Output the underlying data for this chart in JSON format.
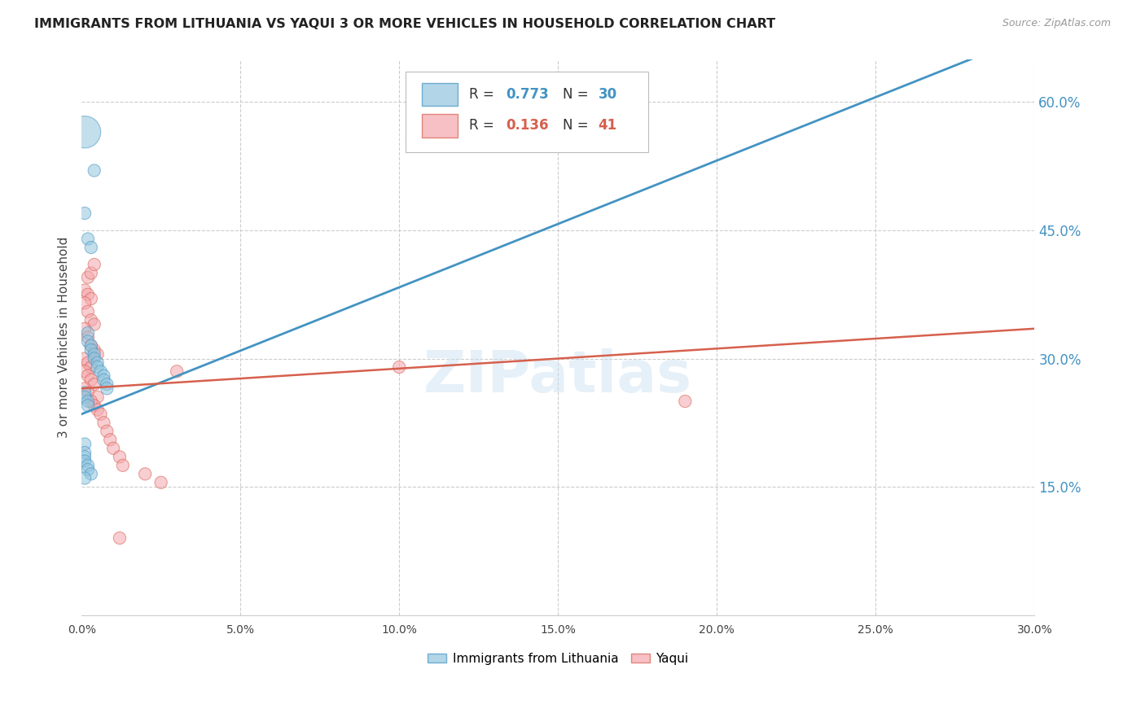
{
  "title": "IMMIGRANTS FROM LITHUANIA VS YAQUI 3 OR MORE VEHICLES IN HOUSEHOLD CORRELATION CHART",
  "source": "Source: ZipAtlas.com",
  "ylabel_label": "3 or more Vehicles in Household",
  "legend_label1": "Immigrants from Lithuania",
  "legend_label2": "Yaqui",
  "r1": "0.773",
  "n1": "30",
  "r2": "0.136",
  "n2": "41",
  "color1": "#92c5de",
  "color2": "#f4a6ad",
  "line_color1": "#4393c3",
  "line_color2": "#d6604d",
  "watermark": "ZIPatlas",
  "xmin": 0.0,
  "xmax": 0.3,
  "ymin": 0.0,
  "ymax": 0.65,
  "blue_line": [
    [
      0.0,
      0.235
    ],
    [
      0.3,
      0.68
    ]
  ],
  "pink_line": [
    [
      0.0,
      0.265
    ],
    [
      0.3,
      0.335
    ]
  ],
  "scatter_blue": [
    [
      0.001,
      0.565
    ],
    [
      0.004,
      0.52
    ],
    [
      0.001,
      0.47
    ],
    [
      0.002,
      0.44
    ],
    [
      0.003,
      0.43
    ],
    [
      0.002,
      0.33
    ],
    [
      0.002,
      0.32
    ],
    [
      0.003,
      0.315
    ],
    [
      0.003,
      0.31
    ],
    [
      0.004,
      0.305
    ],
    [
      0.004,
      0.3
    ],
    [
      0.005,
      0.295
    ],
    [
      0.005,
      0.29
    ],
    [
      0.006,
      0.285
    ],
    [
      0.007,
      0.28
    ],
    [
      0.007,
      0.275
    ],
    [
      0.008,
      0.27
    ],
    [
      0.008,
      0.265
    ],
    [
      0.001,
      0.26
    ],
    [
      0.001,
      0.255
    ],
    [
      0.002,
      0.25
    ],
    [
      0.002,
      0.245
    ],
    [
      0.001,
      0.2
    ],
    [
      0.001,
      0.19
    ],
    [
      0.001,
      0.185
    ],
    [
      0.001,
      0.18
    ],
    [
      0.002,
      0.175
    ],
    [
      0.002,
      0.17
    ],
    [
      0.003,
      0.165
    ],
    [
      0.001,
      0.16
    ]
  ],
  "scatter_pink": [
    [
      0.001,
      0.38
    ],
    [
      0.002,
      0.395
    ],
    [
      0.003,
      0.4
    ],
    [
      0.004,
      0.41
    ],
    [
      0.002,
      0.375
    ],
    [
      0.003,
      0.37
    ],
    [
      0.001,
      0.365
    ],
    [
      0.002,
      0.355
    ],
    [
      0.003,
      0.345
    ],
    [
      0.004,
      0.34
    ],
    [
      0.001,
      0.335
    ],
    [
      0.002,
      0.325
    ],
    [
      0.003,
      0.315
    ],
    [
      0.004,
      0.31
    ],
    [
      0.005,
      0.305
    ],
    [
      0.001,
      0.3
    ],
    [
      0.002,
      0.295
    ],
    [
      0.003,
      0.29
    ],
    [
      0.001,
      0.285
    ],
    [
      0.002,
      0.28
    ],
    [
      0.003,
      0.275
    ],
    [
      0.004,
      0.27
    ],
    [
      0.001,
      0.265
    ],
    [
      0.002,
      0.26
    ],
    [
      0.005,
      0.255
    ],
    [
      0.003,
      0.25
    ],
    [
      0.004,
      0.245
    ],
    [
      0.005,
      0.24
    ],
    [
      0.006,
      0.235
    ],
    [
      0.007,
      0.225
    ],
    [
      0.008,
      0.215
    ],
    [
      0.009,
      0.205
    ],
    [
      0.01,
      0.195
    ],
    [
      0.012,
      0.185
    ],
    [
      0.013,
      0.175
    ],
    [
      0.02,
      0.165
    ],
    [
      0.025,
      0.155
    ],
    [
      0.012,
      0.09
    ],
    [
      0.03,
      0.285
    ],
    [
      0.19,
      0.25
    ],
    [
      0.1,
      0.29
    ]
  ],
  "blue_sizes": [
    800,
    120,
    120,
    120,
    120,
    120,
    120,
    120,
    120,
    120,
    120,
    120,
    120,
    120,
    120,
    120,
    120,
    120,
    120,
    120,
    120,
    120,
    120,
    120,
    120,
    120,
    120,
    120,
    120,
    120
  ],
  "pink_sizes": [
    120,
    120,
    120,
    120,
    120,
    120,
    120,
    120,
    120,
    120,
    120,
    120,
    120,
    120,
    120,
    120,
    120,
    120,
    120,
    120,
    120,
    120,
    120,
    120,
    120,
    120,
    120,
    120,
    120,
    120,
    120,
    120,
    120,
    120,
    120,
    120,
    120,
    120,
    120,
    120,
    120
  ]
}
